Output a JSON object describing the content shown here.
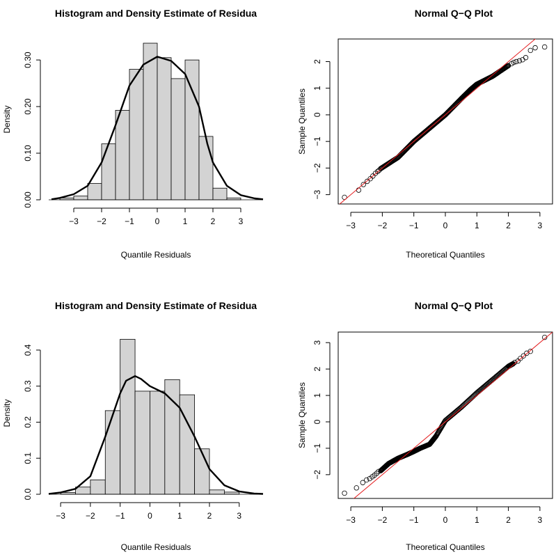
{
  "chart_data": [
    {
      "type": "histogram",
      "title": "Histogram and Density Estimate of Residua",
      "xlabel": "Quantile Residuals",
      "ylabel": "Density",
      "xlim": [
        -3.9,
        3.8
      ],
      "ylim": [
        0,
        0.345
      ],
      "xticks": [
        -3,
        -2,
        -1,
        0,
        1,
        2,
        3
      ],
      "xtick_labels": [
        "−3",
        "−2",
        "−1",
        "0",
        "1",
        "2",
        "3"
      ],
      "yticks": [
        0,
        0.1,
        0.2,
        0.3
      ],
      "ytick_labels": [
        "0.00",
        "0.10",
        "0.20",
        "0.30"
      ],
      "bin_edges": [
        -3.5,
        -3,
        -2.5,
        -2,
        -1.5,
        -1,
        -0.5,
        0,
        0.5,
        1,
        1.5,
        2,
        2.5,
        3,
        3.5
      ],
      "values": [
        0.004,
        0.008,
        0.035,
        0.12,
        0.192,
        0.28,
        0.336,
        0.305,
        0.26,
        0.3,
        0.136,
        0.025,
        0.004,
        0
      ],
      "density": {
        "x": [
          -3.8,
          -3.5,
          -3.0,
          -2.5,
          -2.0,
          -1.5,
          -1.0,
          -0.5,
          0.0,
          0.5,
          1.0,
          1.5,
          1.8,
          2.0,
          2.5,
          3.0,
          3.5,
          3.8
        ],
        "y": [
          0.001,
          0.004,
          0.012,
          0.03,
          0.08,
          0.16,
          0.245,
          0.29,
          0.307,
          0.298,
          0.27,
          0.2,
          0.12,
          0.08,
          0.03,
          0.01,
          0.003,
          0.001
        ]
      }
    },
    {
      "type": "scatter",
      "title": "Normal Q−Q Plot",
      "xlabel": "Theoretical Quantiles",
      "ylabel": "Sample Quantiles",
      "xlim": [
        -3.4,
        3.4
      ],
      "ylim": [
        -3.35,
        2.85
      ],
      "xticks": [
        -3,
        -2,
        -1,
        0,
        1,
        2,
        3
      ],
      "xtick_labels": [
        "−3",
        "−2",
        "−1",
        "0",
        "1",
        "2",
        "3"
      ],
      "yticks": [
        -3,
        -2,
        -1,
        0,
        1,
        2
      ],
      "ytick_labels": [
        "−3",
        "−2",
        "−1",
        "0",
        "1",
        "2"
      ],
      "reference_line": {
        "intercept": 0,
        "slope": 1,
        "color": "#e41a1c"
      },
      "points": {
        "x": [
          -3.2,
          -2.75,
          -2.6,
          -2.48,
          -2.38,
          -2.3,
          -2.22,
          -2.15,
          -2.1,
          2.1,
          2.17,
          2.25,
          2.35,
          2.45,
          2.55,
          2.7,
          2.85,
          3.15
        ],
        "y": [
          -3.1,
          -2.83,
          -2.62,
          -2.5,
          -2.4,
          -2.3,
          -2.2,
          -2.13,
          -2.08,
          1.92,
          1.97,
          2.0,
          2.03,
          2.07,
          2.15,
          2.42,
          2.52,
          2.55
        ]
      },
      "curve": {
        "x": [
          -2.05,
          -1.5,
          -1.0,
          -0.5,
          0.0,
          0.5,
          0.8,
          1.0,
          1.5,
          2.0
        ],
        "y": [
          -2.02,
          -1.6,
          -1.0,
          -0.5,
          0.0,
          0.6,
          0.95,
          1.15,
          1.45,
          1.85
        ]
      }
    },
    {
      "type": "histogram",
      "title": "Histogram and Density Estimate of Residua",
      "xlabel": "Quantile Residuals",
      "ylabel": "Density",
      "xlim": [
        -3.4,
        3.8
      ],
      "ylim": [
        0,
        0.45
      ],
      "xticks": [
        -3,
        -2,
        -1,
        0,
        1,
        2,
        3
      ],
      "xtick_labels": [
        "−3",
        "−2",
        "−1",
        "0",
        "1",
        "2",
        "3"
      ],
      "yticks": [
        0,
        0.1,
        0.2,
        0.3,
        0.4
      ],
      "ytick_labels": [
        "0.0",
        "0.1",
        "0.2",
        "0.3",
        "0.4"
      ],
      "bin_edges": [
        -3,
        -2.5,
        -2,
        -1.5,
        -1,
        -0.5,
        0,
        0.5,
        1,
        1.5,
        2,
        2.5,
        3,
        3.5
      ],
      "values": [
        0.005,
        0.02,
        0.04,
        0.232,
        0.43,
        0.286,
        0.286,
        0.318,
        0.276,
        0.126,
        0.012,
        0.006,
        0
      ],
      "density": {
        "x": [
          -3.4,
          -3.0,
          -2.5,
          -2.0,
          -1.5,
          -1.0,
          -0.8,
          -0.5,
          -0.3,
          0.0,
          0.5,
          1.0,
          1.5,
          2.0,
          2.5,
          3.0,
          3.5,
          3.8
        ],
        "y": [
          0.001,
          0.005,
          0.015,
          0.05,
          0.16,
          0.28,
          0.315,
          0.328,
          0.32,
          0.3,
          0.28,
          0.24,
          0.16,
          0.07,
          0.025,
          0.008,
          0.002,
          0.001
        ]
      }
    },
    {
      "type": "scatter",
      "title": "Normal Q−Q Plot",
      "xlabel": "Theoretical Quantiles",
      "ylabel": "Sample Quantiles",
      "xlim": [
        -3.4,
        3.4
      ],
      "ylim": [
        -2.9,
        3.4
      ],
      "xticks": [
        -3,
        -2,
        -1,
        0,
        1,
        2,
        3
      ],
      "xtick_labels": [
        "−3",
        "−2",
        "−1",
        "0",
        "1",
        "2",
        "3"
      ],
      "yticks": [
        -2,
        -1,
        0,
        1,
        2,
        3
      ],
      "ytick_labels": [
        "−2",
        "−1",
        "0",
        "1",
        "2",
        "3"
      ],
      "reference_line": {
        "intercept": 0,
        "slope": 1,
        "color": "#e41a1c"
      },
      "points": {
        "x": [
          -3.2,
          -2.82,
          -2.62,
          -2.5,
          -2.4,
          -2.32,
          -2.25,
          -2.18,
          -2.12,
          2.2,
          2.3,
          2.38,
          2.48,
          2.58,
          2.7,
          3.15
        ],
        "y": [
          -2.7,
          -2.5,
          -2.3,
          -2.2,
          -2.15,
          -2.08,
          -2.02,
          -1.95,
          -1.88,
          2.25,
          2.3,
          2.4,
          2.5,
          2.6,
          2.67,
          3.2
        ]
      },
      "curve": {
        "x": [
          -2.05,
          -1.8,
          -1.5,
          -1.2,
          -1.0,
          -0.8,
          -0.5,
          -0.3,
          0.0,
          0.5,
          1.0,
          1.5,
          2.0,
          2.15
        ],
        "y": [
          -1.85,
          -1.58,
          -1.38,
          -1.23,
          -1.12,
          -1.0,
          -0.85,
          -0.55,
          0.05,
          0.55,
          1.1,
          1.6,
          2.1,
          2.2
        ]
      }
    }
  ]
}
